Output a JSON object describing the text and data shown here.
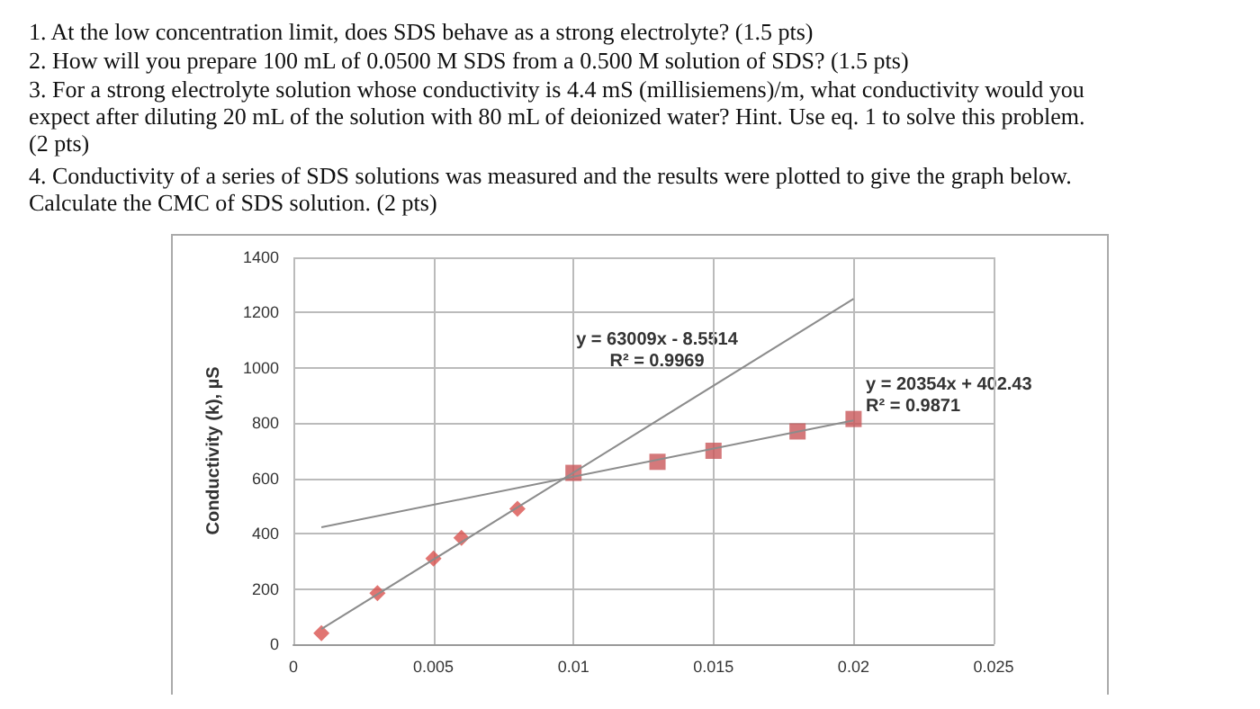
{
  "chart_data": {
    "type": "scatter",
    "ylabel": "Conductivity (k), µS",
    "annotations": [
      "1. At the low concentration limit, does SDS behave as a strong electrolyte? (1.5 pts)",
      "2. How will you prepare 100 mL of 0.0500 M SDS from a 0.500 M solution of SDS? (1.5 pts)",
      "3. For a strong electrolyte solution whose conductivity is 4.4 mS (millisiemens)/m, what conductivity would you expect after diluting 20 mL of the solution with 80 mL of deionized water? Hint. Use eq. 1 to solve this problem. (2 pts)",
      "4. Conductivity of a series of SDS solutions was measured and the results were plotted to give the graph below. Calculate the CMC of SDS solution. (2 pts)",
      "y = 63009x - 8.5514\nR² = 0.9969",
      "y = 20354x + 402.43\nR² = 0.9871"
    ],
    "series": [
      {
        "marker": "diamond",
        "color": "#d9534f",
        "x": [
          0.001,
          0.003,
          0.005,
          0.006,
          0.008
        ],
        "values": [
          40,
          185,
          310,
          385,
          490
        ]
      },
      {
        "marker": "square",
        "color": "#c9575a",
        "x": [
          0.01,
          0.013,
          0.015,
          0.018,
          0.02
        ],
        "values": [
          620,
          660,
          700,
          770,
          815
        ]
      },
      {
        "type": "line",
        "marker": "none",
        "color": "#8c8c8c",
        "x": [
          0.001,
          0.02
        ],
        "values": [
          55,
          1250
        ]
      },
      {
        "type": "line",
        "marker": "none",
        "color": "#8c8c8c",
        "x": [
          0.001,
          0.02
        ],
        "values": [
          423,
          810
        ]
      }
    ],
    "xlim": [
      0,
      0.025
    ],
    "xticks": [
      0,
      0.005,
      0.01,
      0.015,
      0.02,
      0.025
    ],
    "ylim": [
      0,
      1400
    ],
    "yticks": [
      0,
      200,
      400,
      600,
      800,
      1000,
      1200,
      1400
    ],
    "grid": true
  }
}
